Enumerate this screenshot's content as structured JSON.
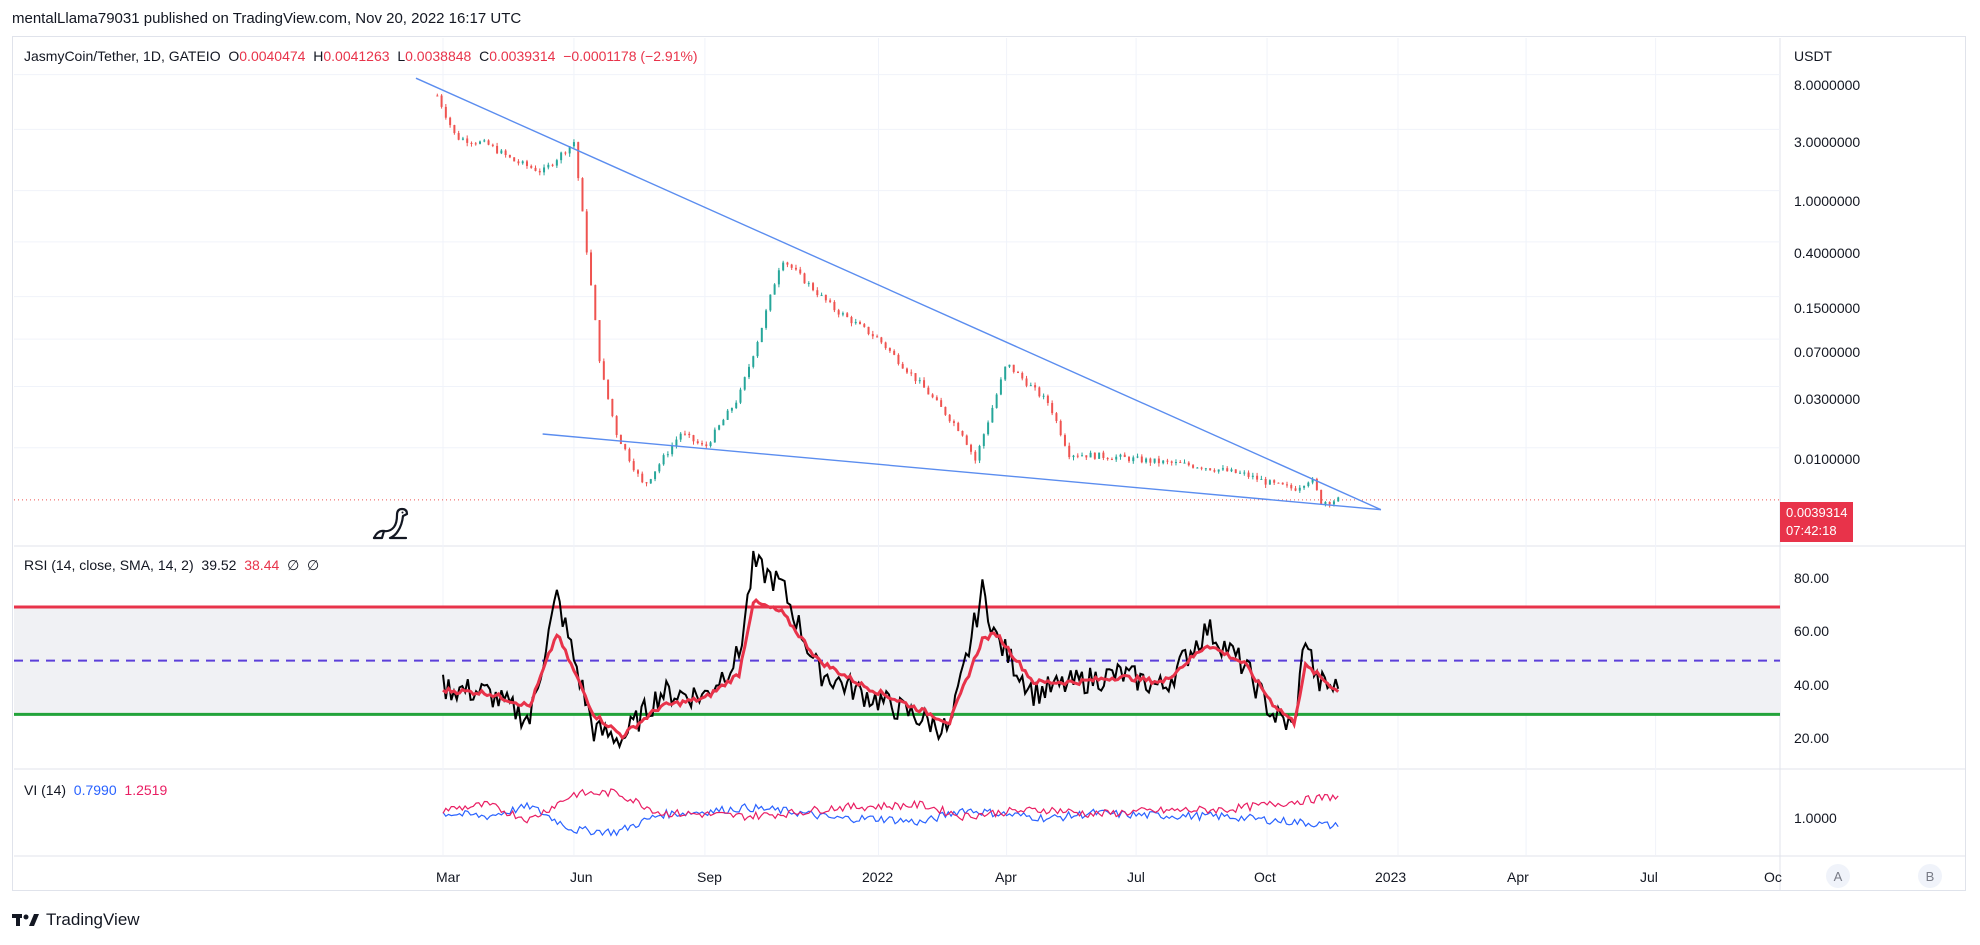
{
  "header": {
    "published_by": "mentalLlama79031 published on TradingView.com, Nov 20, 2022 16:17 UTC"
  },
  "main_legend": {
    "symbol": "JasmyCoin/Tether, 1D, GATEIO",
    "o_label": "O",
    "o_value": "0.0040474",
    "h_label": "H",
    "h_value": "0.0041263",
    "l_label": "L",
    "l_value": "0.0038848",
    "c_label": "C",
    "c_value": "0.0039314",
    "change": "−0.0001178 (−2.91%)"
  },
  "price_axis": {
    "currency": "USDT",
    "ticks": [
      "8.0000000",
      "3.0000000",
      "1.0000000",
      "0.4000000",
      "0.1500000",
      "0.0700000",
      "0.0300000",
      "0.0100000"
    ],
    "last_price": "0.0039314",
    "countdown": "07:42:18"
  },
  "rsi_legend": {
    "label": "RSI (14, close, SMA, 14, 2)",
    "rsi_value": "39.52",
    "sma_value": "38.44",
    "na1": "∅",
    "na2": "∅"
  },
  "rsi_axis": {
    "ticks": [
      "80.00",
      "60.00",
      "40.00",
      "20.00"
    ]
  },
  "vi_legend": {
    "label": "VI (14)",
    "plus_value": "0.7990",
    "minus_value": "1.2519"
  },
  "vi_axis": {
    "ticks": [
      "1.0000"
    ]
  },
  "time_axis": {
    "ticks": [
      "Mar",
      "Jun",
      "Sep",
      "2022",
      "Apr",
      "Jul",
      "Oct",
      "2023",
      "Apr",
      "Jul",
      "Oc"
    ]
  },
  "scale_buttons": {
    "auto": "A",
    "log": "B"
  },
  "footer": {
    "brand": "TradingView"
  },
  "colors": {
    "up": "#26a69a",
    "down": "#ef5350",
    "trendline": "#5b8def",
    "rsi_line": "#000000",
    "rsi_sma": "#e8334a",
    "upper_band": "#e8334a",
    "lower_band": "#22a33a",
    "mid_band": "#5b3fd9",
    "vi_plus": "#2962ff",
    "vi_minus": "#e91e63"
  },
  "chart_data": [
    {
      "type": "candlestick",
      "title": "JasmyCoin/Tether, 1D, GATEIO",
      "scale": "log",
      "ylim": [
        0.003,
        9.0
      ],
      "x": [
        "2021-02-25",
        "2021-03-10",
        "2021-04-01",
        "2021-04-20",
        "2021-05-10",
        "2021-06-01",
        "2021-06-20",
        "2021-07-01",
        "2021-07-20",
        "2021-08-15",
        "2021-09-01",
        "2021-09-25",
        "2021-10-10",
        "2021-10-25",
        "2021-11-10",
        "2021-12-01",
        "2022-01-01",
        "2022-02-01",
        "2022-03-01",
        "2022-03-10",
        "2022-04-01",
        "2022-05-01",
        "2022-05-15",
        "2022-06-15",
        "2022-07-15",
        "2022-08-15",
        "2022-09-15",
        "2022-10-05",
        "2022-10-20",
        "2022-11-01",
        "2022-11-08",
        "2022-11-20"
      ],
      "close": [
        5.5,
        2.6,
        2.3,
        1.7,
        1.4,
        2.4,
        0.04,
        0.013,
        0.005,
        0.013,
        0.01,
        0.025,
        0.08,
        0.3,
        0.2,
        0.12,
        0.07,
        0.03,
        0.013,
        0.008,
        0.045,
        0.022,
        0.009,
        0.0085,
        0.0078,
        0.0072,
        0.0062,
        0.0052,
        0.0048,
        0.0058,
        0.0038,
        0.0039314
      ],
      "trendlines": [
        {
          "name": "upper",
          "from": [
            "2021-02-10",
            7.5
          ],
          "to": [
            "2022-12-20",
            0.0033
          ]
        },
        {
          "name": "lower",
          "from": [
            "2021-05-10",
            0.0128
          ],
          "to": [
            "2022-12-20",
            0.0033
          ]
        }
      ]
    },
    {
      "type": "line",
      "title": "RSI (14, close, SMA, 14, 2)",
      "ylim": [
        10,
        92
      ],
      "bands": {
        "upper": 70,
        "middle": 50,
        "lower": 30
      },
      "x": [
        "2021-03-01",
        "2021-04-01",
        "2021-05-01",
        "2021-05-20",
        "2021-06-15",
        "2021-07-05",
        "2021-08-01",
        "2021-09-01",
        "2021-09-25",
        "2021-10-05",
        "2021-10-25",
        "2021-11-20",
        "2021-12-20",
        "2022-01-20",
        "2022-02-20",
        "2022-03-15",
        "2022-03-25",
        "2022-04-20",
        "2022-05-20",
        "2022-06-20",
        "2022-07-20",
        "2022-08-20",
        "2022-09-15",
        "2022-10-05",
        "2022-10-20",
        "2022-10-28",
        "2022-11-05",
        "2022-11-20"
      ],
      "series": [
        {
          "name": "RSI",
          "values": [
            40,
            38,
            28,
            74,
            24,
            21,
            38,
            37,
            52,
            86,
            78,
            46,
            38,
            31,
            24,
            76,
            58,
            38,
            42,
            45,
            40,
            62,
            48,
            30,
            25,
            60,
            42,
            39.52
          ]
        },
        {
          "name": "RSI-based MA",
          "values": [
            39,
            38,
            33,
            60,
            30,
            22,
            33,
            36,
            45,
            72,
            68,
            50,
            41,
            34,
            27,
            58,
            60,
            42,
            42,
            44,
            42,
            56,
            49,
            34,
            27,
            48,
            45,
            38.44
          ]
        }
      ]
    },
    {
      "type": "line",
      "title": "VI (14)",
      "ylim": [
        0.5,
        1.5
      ],
      "x": [
        "2021-03-01",
        "2021-04-01",
        "2021-05-01",
        "2021-06-01",
        "2021-07-01",
        "2021-08-01",
        "2021-09-01",
        "2021-10-01",
        "2021-11-01",
        "2021-12-01",
        "2022-01-01",
        "2022-02-01",
        "2022-03-01",
        "2022-04-01",
        "2022-05-01",
        "2022-06-01",
        "2022-07-01",
        "2022-08-01",
        "2022-09-01",
        "2022-10-01",
        "2022-11-01",
        "2022-11-20"
      ],
      "series": [
        {
          "name": "VI+",
          "values": [
            1.0,
            0.95,
            1.1,
            0.75,
            0.72,
            0.98,
            1.02,
            1.08,
            1.02,
            0.92,
            0.92,
            0.86,
            1.05,
            0.98,
            0.92,
            1.0,
            0.97,
            0.96,
            0.95,
            0.9,
            0.85,
            0.799
          ]
        },
        {
          "name": "VI-",
          "values": [
            1.05,
            1.12,
            0.9,
            1.28,
            1.3,
            1.0,
            0.98,
            0.95,
            1.0,
            1.08,
            1.1,
            1.12,
            0.95,
            1.02,
            1.05,
            0.98,
            1.02,
            1.04,
            1.05,
            1.12,
            1.2,
            1.2519
          ]
        }
      ]
    }
  ]
}
